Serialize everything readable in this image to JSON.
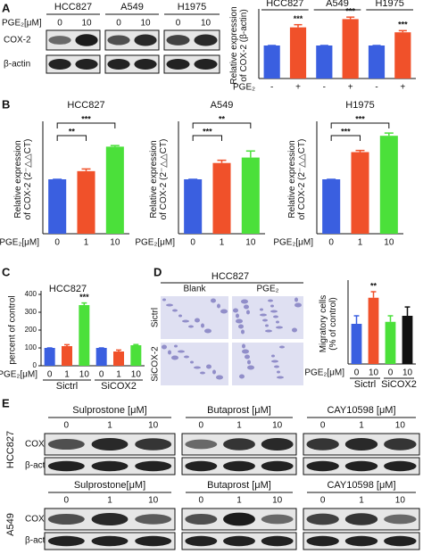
{
  "panels": [
    "A",
    "B",
    "C",
    "D",
    "E"
  ],
  "chart_data": [
    {
      "type": "bar",
      "ylabel": [
        "Relative expression",
        "of COX-2 (β-actin)"
      ],
      "xlabel": "PGE₂",
      "groups": [
        "HCC827",
        "A549",
        "H1975"
      ],
      "categories": [
        "-",
        "+",
        "-",
        "+",
        "-",
        "+"
      ],
      "values": [
        100,
        155,
        100,
        180,
        100,
        140
      ],
      "errors": [
        0,
        8,
        0,
        6,
        0,
        5
      ],
      "colors": [
        "#3a5fe0",
        "#f0512a",
        "#3a5fe0",
        "#f0512a",
        "#3a5fe0",
        "#f0512a"
      ],
      "ylim": [
        0,
        200
      ],
      "sig": [
        null,
        "***",
        null,
        "***",
        null,
        "***"
      ]
    },
    {
      "type": "bar",
      "title": "HCC827",
      "ylabel": [
        "Relative expression",
        "of COX-2 (2⁻△△CT)"
      ],
      "xlabel": "PGE₂[μM]",
      "categories": [
        "0",
        "1",
        "10"
      ],
      "values": [
        1.0,
        1.15,
        1.6
      ],
      "errors": [
        0,
        0.04,
        0.02
      ],
      "colors": [
        "#3a5fe0",
        "#f0512a",
        "#4be03a"
      ],
      "ylim": [
        0,
        2
      ],
      "brackets": [
        null,
        "**",
        "***"
      ]
    },
    {
      "type": "bar",
      "title": "A549",
      "ylabel": [
        "Relative expression",
        "of COX-2 (2⁻△△CT)"
      ],
      "xlabel": "PGE₂[μM]",
      "categories": [
        "0",
        "1",
        "10"
      ],
      "values": [
        1.0,
        1.3,
        1.4
      ],
      "errors": [
        0,
        0.05,
        0.12
      ],
      "colors": [
        "#3a5fe0",
        "#f0512a",
        "#4be03a"
      ],
      "ylim": [
        0,
        2
      ],
      "brackets": [
        null,
        "***",
        "**"
      ]
    },
    {
      "type": "bar",
      "title": "H1975",
      "ylabel": [
        "Relative expression",
        "of COX-2 (2⁻△△CT)"
      ],
      "xlabel": "PGE₂[μM]",
      "categories": [
        "0",
        "1",
        "10"
      ],
      "values": [
        1.0,
        1.5,
        1.8
      ],
      "errors": [
        0,
        0.03,
        0.05
      ],
      "colors": [
        "#3a5fe0",
        "#f0512a",
        "#4be03a"
      ],
      "ylim": [
        0,
        2
      ],
      "brackets": [
        null,
        "***",
        "***"
      ]
    },
    {
      "type": "bar",
      "title": "HCC827",
      "ylabel": [
        "percent of control"
      ],
      "xlabel": "PGE₂[μM]",
      "groups": [
        "Sictrl",
        "SiCOX2"
      ],
      "categories": [
        "0",
        "1",
        "10",
        "0",
        "1",
        "10"
      ],
      "values": [
        100,
        110,
        340,
        100,
        80,
        115
      ],
      "errors": [
        0,
        8,
        12,
        0,
        8,
        4
      ],
      "colors": [
        "#3a5fe0",
        "#f0512a",
        "#4be03a",
        "#3a5fe0",
        "#f0512a",
        "#4be03a"
      ],
      "ylim": [
        0,
        400
      ],
      "yticks": [
        0,
        100,
        200,
        300,
        400
      ],
      "sig": [
        null,
        null,
        "***",
        null,
        null,
        null
      ]
    },
    {
      "type": "bar",
      "ylabel": [
        "Migratory cells",
        "(% of control)"
      ],
      "xlabel": "PGE₂[μM]",
      "groups": [
        "Sictrl",
        "SiCOX2"
      ],
      "categories": [
        "0",
        "10",
        "0",
        "10"
      ],
      "values": [
        100,
        165,
        105,
        120
      ],
      "errors": [
        20,
        15,
        15,
        22
      ],
      "colors": [
        "#3a5fe0",
        "#f0512a",
        "#4be03a",
        "#111111"
      ],
      "ylim": [
        0,
        200
      ],
      "sig": [
        null,
        "**",
        null,
        null
      ]
    }
  ],
  "blot_a": {
    "cells": [
      "HCC827",
      "A549",
      "H1975"
    ],
    "dose_label": "PGE₂[μM]",
    "doses": [
      "0",
      "10"
    ],
    "bands": [
      "COX-2",
      "β-actin"
    ]
  },
  "images_d": {
    "title": "HCC827",
    "columns": [
      "Blank",
      "PGE₂"
    ],
    "rows": [
      "Sictrl",
      "SiCOX-2"
    ]
  },
  "blot_e": [
    {
      "cell": "HCC827",
      "bands": [
        "COX-2",
        "β-actin"
      ],
      "treatments": [
        {
          "drug": "Sulprostone [μM]",
          "doses": [
            "0",
            "1",
            "10"
          ]
        },
        {
          "drug": "Butaprost [μM]",
          "doses": [
            "0",
            "1",
            "10"
          ]
        },
        {
          "drug": "CAY10598 [μM]",
          "doses": [
            "0",
            "1",
            "10"
          ]
        }
      ]
    },
    {
      "cell": "A549",
      "bands": [
        "COX-2",
        "β-actin"
      ],
      "treatments": [
        {
          "drug": "Sulprostone[μM]",
          "doses": [
            "0",
            "1",
            "10"
          ]
        },
        {
          "drug": "Butaprost [μM]",
          "doses": [
            "0",
            "1",
            "10"
          ]
        },
        {
          "drug": "CAY10598 [μM]",
          "doses": [
            "0",
            "1",
            "10"
          ]
        }
      ]
    }
  ]
}
